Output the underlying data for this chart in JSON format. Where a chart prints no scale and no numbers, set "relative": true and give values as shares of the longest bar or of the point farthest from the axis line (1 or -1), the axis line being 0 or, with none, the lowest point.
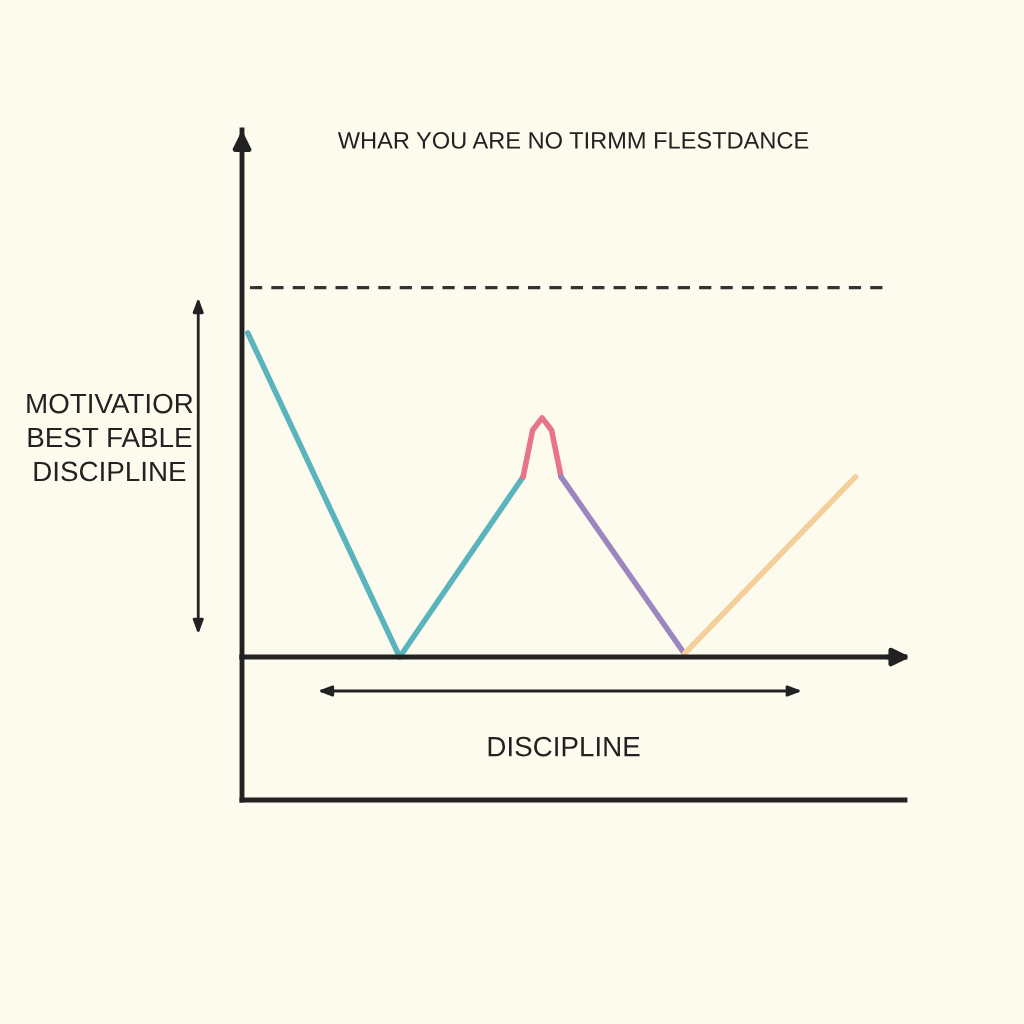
{
  "chart_data": {
    "type": "line",
    "relative": true,
    "title": "WHAR YOU ARE NO TIRMM FLESTDANCE",
    "xlabel": "DISCIPLINE",
    "ylabel": "MOTIVATIOR\nBEST FABLE\nDISCIPLINE",
    "tick_labels": false,
    "legend": false,
    "marker": "none",
    "line_style": "solid",
    "categories": [
      null,
      null,
      null,
      null,
      null,
      null,
      null,
      null,
      null,
      null,
      null,
      null,
      null,
      null,
      null,
      null,
      null,
      null,
      null,
      null,
      null,
      null,
      null,
      null,
      null,
      null,
      null,
      null,
      null,
      null,
      null,
      null,
      null,
      null,
      null,
      null,
      null,
      null,
      null,
      null,
      null,
      null,
      null,
      null,
      null,
      null,
      null,
      null,
      null,
      null,
      null,
      null,
      null,
      null,
      null,
      null,
      null,
      null,
      null,
      null,
      null,
      null,
      null,
      null,
      null
    ],
    "series": [
      {
        "color": "#5ab4bc",
        "values": [
          1,
          null,
          null,
          null,
          null,
          null,
          null,
          null,
          null,
          null,
          null,
          null,
          null,
          null,
          null,
          null,
          0,
          null,
          null,
          null,
          null,
          null,
          null,
          null,
          null,
          null,
          null,
          null,
          null,
          0.556,
          null,
          null,
          null,
          null,
          null,
          null,
          null,
          null,
          null,
          null,
          null,
          null,
          null,
          null,
          null,
          null,
          null,
          null,
          null,
          null,
          null,
          null,
          null,
          null,
          null,
          null,
          null,
          null,
          null,
          null,
          null,
          null,
          null,
          null,
          null
        ]
      },
      {
        "color": "#e8748a",
        "values": [
          null,
          null,
          null,
          null,
          null,
          null,
          null,
          null,
          null,
          null,
          null,
          null,
          null,
          null,
          null,
          null,
          null,
          null,
          null,
          null,
          null,
          null,
          null,
          null,
          null,
          null,
          null,
          null,
          null,
          0.556,
          0.7,
          0.738,
          0.7,
          0.556,
          null,
          null,
          null,
          null,
          null,
          null,
          null,
          null,
          null,
          null,
          null,
          null,
          null,
          null,
          null,
          null,
          null,
          null,
          null,
          null,
          null,
          null,
          null,
          null,
          null,
          null,
          null,
          null,
          null,
          null,
          null
        ]
      },
      {
        "color": "#9b86c0",
        "values": [
          null,
          null,
          null,
          null,
          null,
          null,
          null,
          null,
          null,
          null,
          null,
          null,
          null,
          null,
          null,
          null,
          null,
          null,
          null,
          null,
          null,
          null,
          null,
          null,
          null,
          null,
          null,
          null,
          null,
          null,
          null,
          null,
          null,
          0.556,
          null,
          null,
          null,
          null,
          null,
          null,
          null,
          null,
          null,
          null,
          null,
          null,
          0.01,
          null,
          null,
          null,
          null,
          null,
          null,
          null,
          null,
          null,
          null,
          null,
          null,
          null,
          null,
          null,
          null,
          null,
          null
        ]
      },
      {
        "color": "#f5cf9a",
        "values": [
          null,
          null,
          null,
          null,
          null,
          null,
          null,
          null,
          null,
          null,
          null,
          null,
          null,
          null,
          null,
          null,
          null,
          null,
          null,
          null,
          null,
          null,
          null,
          null,
          null,
          null,
          null,
          null,
          null,
          null,
          null,
          null,
          null,
          null,
          null,
          null,
          null,
          null,
          null,
          null,
          null,
          null,
          null,
          null,
          null,
          null,
          0.01,
          null,
          null,
          null,
          null,
          null,
          null,
          null,
          null,
          null,
          null,
          null,
          null,
          null,
          null,
          null,
          null,
          null,
          0.556
        ]
      }
    ],
    "ref_lines": [
      {
        "axis": "y",
        "value": 1.14,
        "color": "#333333",
        "line_style": "dashed"
      }
    ]
  }
}
